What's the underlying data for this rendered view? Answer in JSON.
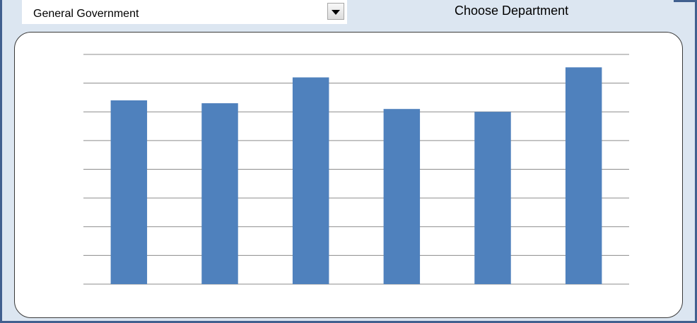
{
  "department_select": {
    "selected_value": "General Government",
    "label": "Choose Department"
  },
  "colors": {
    "bar": "#4f81bd",
    "gridline": "#8c8c8c",
    "background": "#dce6f1",
    "frame": "#41608f"
  },
  "icons": {
    "dropdown": "triangle-down-icon"
  },
  "chart_data": {
    "type": "bar",
    "categories": [
      "",
      "",
      "",
      "",
      "",
      ""
    ],
    "values": [
      6.4,
      6.3,
      7.2,
      6.1,
      6.0,
      7.55
    ],
    "title": "",
    "xlabel": "",
    "ylabel": "",
    "ylim": [
      0,
      8
    ],
    "grid": true,
    "legend": "none"
  }
}
